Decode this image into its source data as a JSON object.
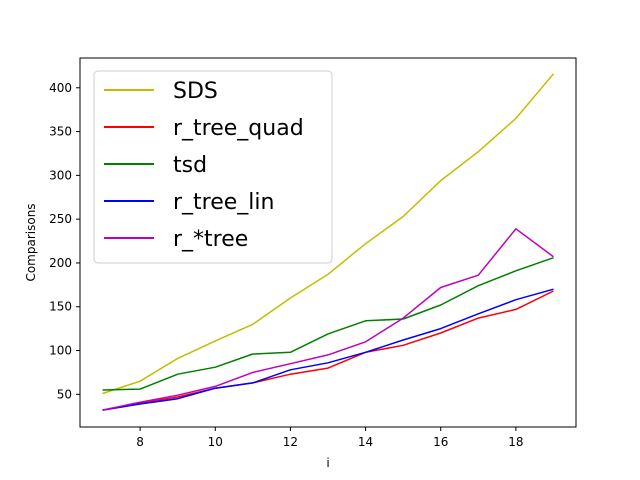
{
  "chart_data": {
    "type": "line",
    "title": "",
    "xlabel": "i",
    "ylabel": "Comparisons",
    "xlim": [
      6.4,
      19.6
    ],
    "ylim": [
      12.7,
      434
    ],
    "xticks": [
      8,
      10,
      12,
      14,
      16,
      18
    ],
    "yticks": [
      50,
      100,
      150,
      200,
      250,
      300,
      350,
      400
    ],
    "grid": false,
    "legend_position": "top-left",
    "x": [
      7,
      8,
      9,
      10,
      11,
      12,
      13,
      14,
      15,
      16,
      17,
      18,
      19
    ],
    "series": [
      {
        "name": "SDS",
        "color": "#bfbf00",
        "values": [
          51,
          65,
          91,
          111,
          130,
          160,
          187,
          222,
          253,
          294,
          327,
          365,
          416
        ]
      },
      {
        "name": "r_tree_quad",
        "color": "#ff0000",
        "values": [
          32,
          40,
          47,
          57,
          63,
          73,
          80,
          98,
          106,
          120,
          137,
          147,
          168
        ]
      },
      {
        "name": "tsd",
        "color": "#008000",
        "values": [
          55,
          56,
          73,
          81,
          96,
          98,
          119,
          134,
          136,
          152,
          174,
          191,
          206
        ]
      },
      {
        "name": "r_tree_lin",
        "color": "#0000ff",
        "values": [
          32,
          39,
          45,
          57,
          63,
          78,
          86,
          98,
          112,
          125,
          142,
          158,
          170
        ]
      },
      {
        "name": "r_*tree",
        "color": "#bf00bf",
        "values": [
          32,
          41,
          49,
          59,
          75,
          85,
          95,
          110,
          137,
          172,
          186,
          239,
          207
        ]
      }
    ]
  }
}
